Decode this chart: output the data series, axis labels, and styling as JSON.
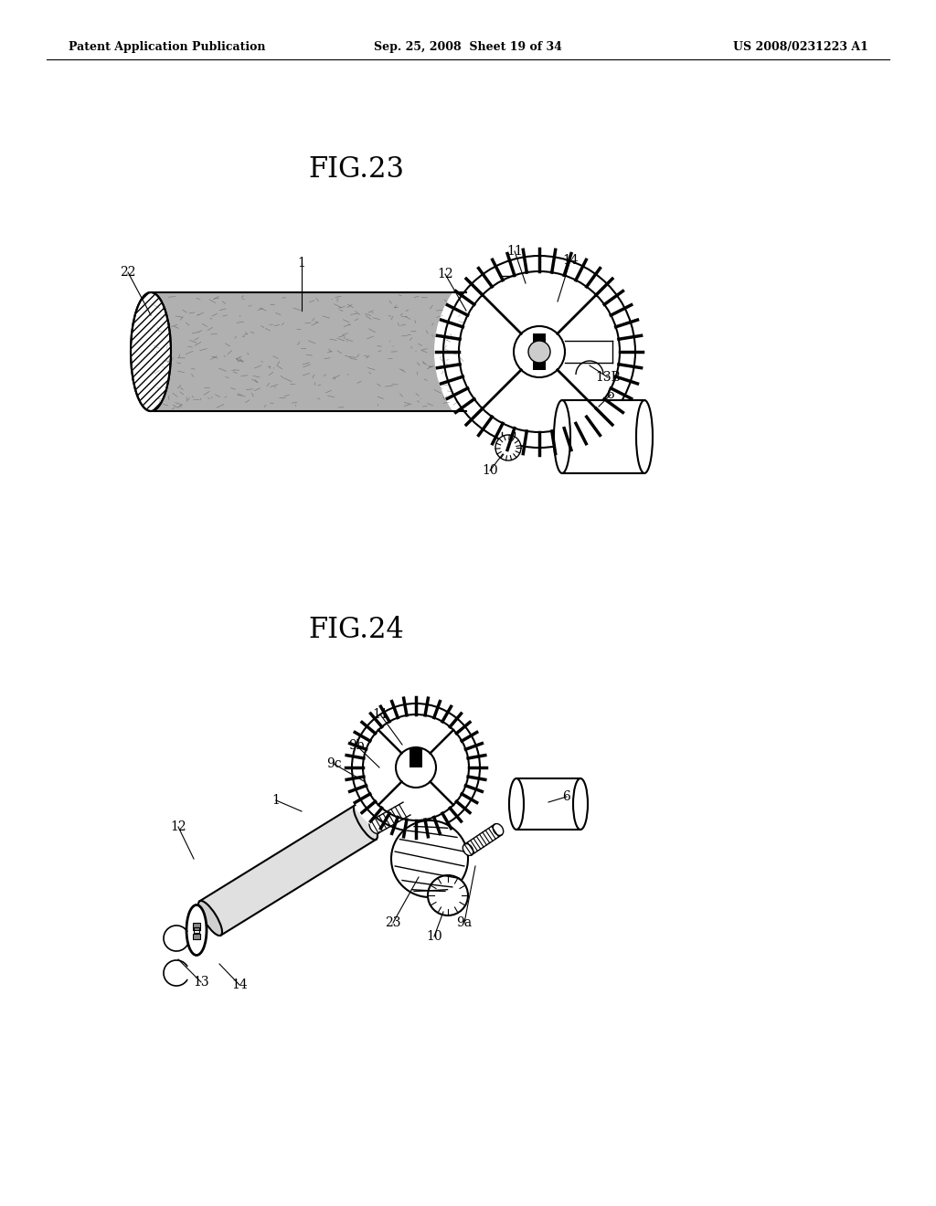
{
  "header_left": "Patent Application Publication",
  "header_mid": "Sep. 25, 2008  Sheet 19 of 34",
  "header_right": "US 2008/0231223 A1",
  "fig23_title": "FIG.23",
  "fig24_title": "FIG.24",
  "bg_color": "#ffffff",
  "line_color": "#000000"
}
